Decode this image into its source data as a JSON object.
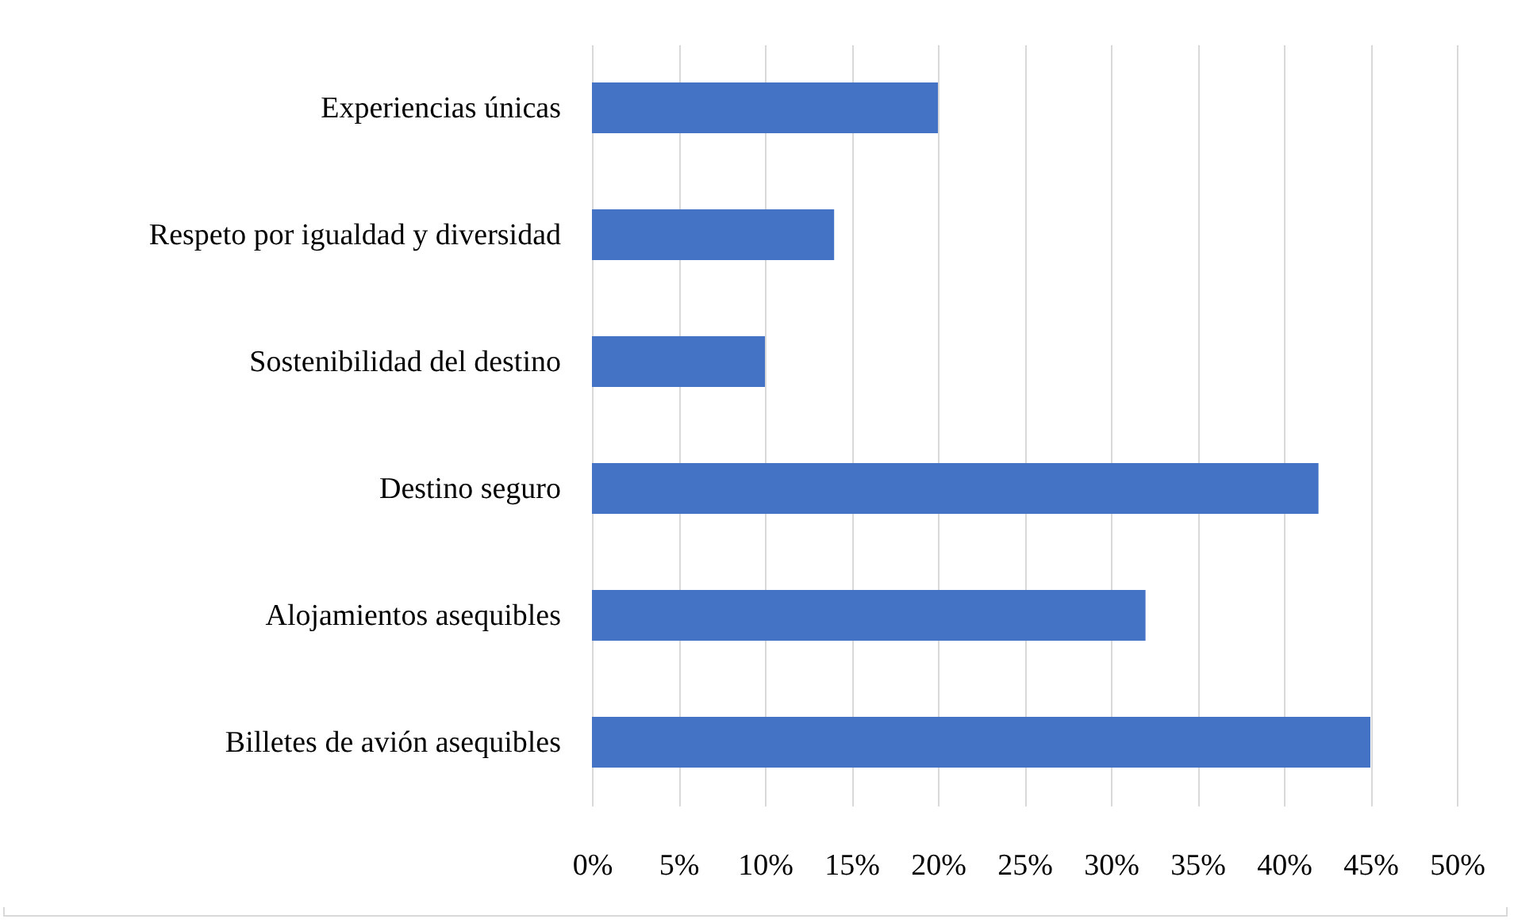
{
  "chart_data": {
    "type": "bar",
    "orientation": "horizontal",
    "categories": [
      "Experiencias únicas",
      "Respeto por igualdad y diversidad",
      "Sostenibilidad del destino",
      "Destino seguro",
      "Alojamientos asequibles",
      "Billetes de avión asequibles"
    ],
    "values": [
      20,
      14,
      10,
      42,
      32,
      45
    ],
    "color": "#4472c4",
    "xlim": [
      0,
      50
    ],
    "xticks": [
      {
        "value": 0,
        "label": "0%"
      },
      {
        "value": 5,
        "label": "5%"
      },
      {
        "value": 10,
        "label": "10%"
      },
      {
        "value": 15,
        "label": "15%"
      },
      {
        "value": 20,
        "label": "20%"
      },
      {
        "value": 25,
        "label": "25%"
      },
      {
        "value": 30,
        "label": "30%"
      },
      {
        "value": 35,
        "label": "35%"
      },
      {
        "value": 40,
        "label": "40%"
      },
      {
        "value": 45,
        "label": "45%"
      },
      {
        "value": 50,
        "label": "50%"
      }
    ],
    "grid": "x"
  }
}
